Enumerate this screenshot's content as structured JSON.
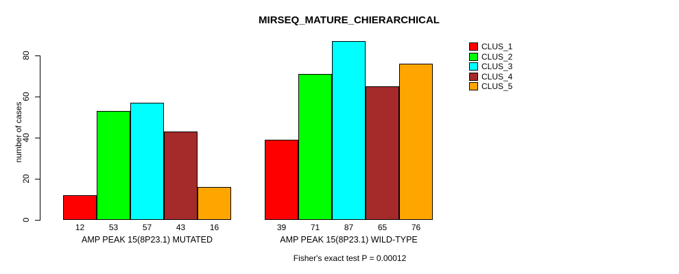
{
  "chart_data": {
    "type": "bar",
    "title": "MIRSEQ_MATURE_CHIERARCHICAL",
    "ylabel": "number of cases",
    "footer": "Fisher's exact test P = 0.00012",
    "yticks": [
      0,
      20,
      40,
      60,
      80
    ],
    "ylim": [
      0,
      88
    ],
    "grid": false,
    "legend_position": "topright",
    "bar_value_labels_shown": true,
    "series": [
      {
        "name": "CLUS_1",
        "color": "#FF0000"
      },
      {
        "name": "CLUS_2",
        "color": "#00FF00"
      },
      {
        "name": "CLUS_3",
        "color": "#00FFFF"
      },
      {
        "name": "CLUS_4",
        "color": "#A52A2A"
      },
      {
        "name": "CLUS_5",
        "color": "#FFA500"
      }
    ],
    "groups": [
      {
        "label": "AMP PEAK 15(8P23.1) MUTATED",
        "values": [
          12,
          53,
          57,
          43,
          16
        ]
      },
      {
        "label": "AMP PEAK 15(8P23.1) WILD-TYPE",
        "values": [
          39,
          71,
          87,
          65,
          76
        ]
      }
    ]
  }
}
